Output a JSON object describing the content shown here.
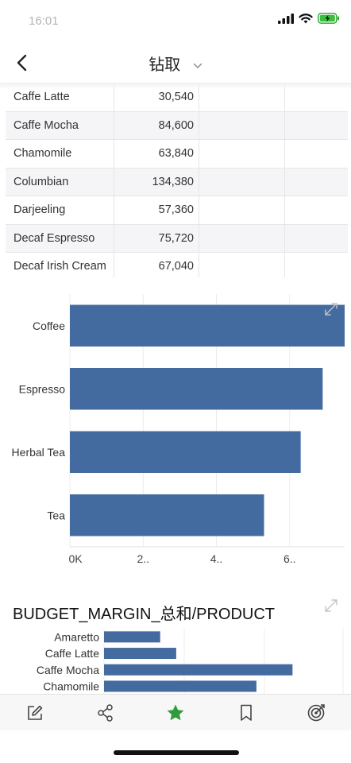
{
  "status": {
    "time": "16:01"
  },
  "nav": {
    "title": "钻取"
  },
  "table": {
    "rows": [
      {
        "name": "Caffe Latte",
        "value": "30,540"
      },
      {
        "name": "Caffe Mocha",
        "value": "84,600"
      },
      {
        "name": "Chamomile",
        "value": "63,840"
      },
      {
        "name": "Columbian",
        "value": "134,380"
      },
      {
        "name": "Darjeeling",
        "value": "57,360"
      },
      {
        "name": "Decaf Espresso",
        "value": "75,720"
      },
      {
        "name": "Decaf Irish Cream",
        "value": "67,040"
      }
    ]
  },
  "chart_data": [
    {
      "type": "bar",
      "orientation": "horizontal",
      "title": "",
      "categories": [
        "Coffee",
        "Espresso",
        "Herbal Tea",
        "Tea"
      ],
      "values": [
        7.5,
        6.9,
        6.3,
        5.3
      ],
      "x_ticks": [
        "0K",
        "2..",
        "4..",
        "6.."
      ],
      "xlim": [
        0,
        7.5
      ],
      "grid": true,
      "bar_color": "#436b9f"
    },
    {
      "type": "bar",
      "orientation": "horizontal",
      "title": "BUDGET_MARGIN_总和/PRODUCT",
      "categories": [
        "Amaretto",
        "Caffe Latte",
        "Caffe Mocha",
        "Chamomile"
      ],
      "values": [
        14000,
        18000,
        47000,
        38000
      ],
      "xlim": [
        0,
        60000
      ],
      "grid": true,
      "bar_color": "#436b9f"
    }
  ],
  "colors": {
    "bar": "#436b9f",
    "accent": "#2e9b3e",
    "grid": "#ececec"
  }
}
